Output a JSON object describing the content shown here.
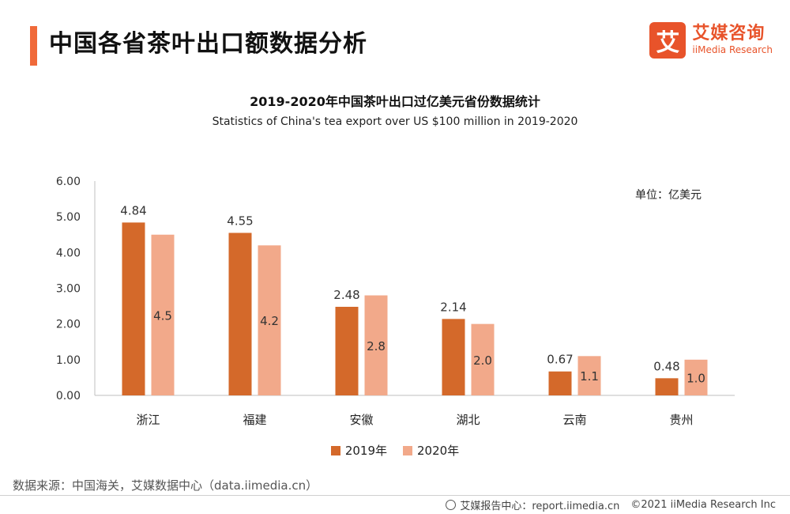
{
  "header": {
    "title": "中国各省茶叶出口额数据分析",
    "logo_mark": "艾",
    "logo_cn": "艾媒咨询",
    "logo_en": "iiMedia Research"
  },
  "chart_data": {
    "type": "bar",
    "title": "2019-2020年中国茶叶出口过亿美元省份数据统计",
    "subtitle": "Statistics of China's tea export over US $100 million in 2019-2020",
    "unit": "单位：亿美元",
    "categories": [
      "浙江",
      "福建",
      "安徽",
      "湖北",
      "云南",
      "贵州"
    ],
    "series": [
      {
        "name": "2019年",
        "color": "#d4692a",
        "values": [
          4.84,
          4.55,
          2.48,
          2.14,
          0.67,
          0.48
        ],
        "labels": [
          "4.84",
          "4.55",
          "2.48",
          "2.14",
          "0.67",
          "0.48"
        ]
      },
      {
        "name": "2020年",
        "color": "#f2a98a",
        "values": [
          4.5,
          4.2,
          2.8,
          2.0,
          1.1,
          1.0
        ],
        "labels": [
          "4.5",
          "4.2",
          "2.8",
          "2.0",
          "1.1",
          "1.0"
        ]
      }
    ],
    "ylim": [
      0,
      6
    ],
    "yticks": [
      "0.00",
      "1.00",
      "2.00",
      "3.00",
      "4.00",
      "5.00",
      "6.00"
    ],
    "legend_position": "bottom",
    "grid": false
  },
  "source": "数据来源：中国海关，艾媒数据中心（data.iimedia.cn）",
  "footer": {
    "report_center": "艾媒报告中心：report.iimedia.cn",
    "copyright": "©2021  iiMedia Research  Inc"
  }
}
